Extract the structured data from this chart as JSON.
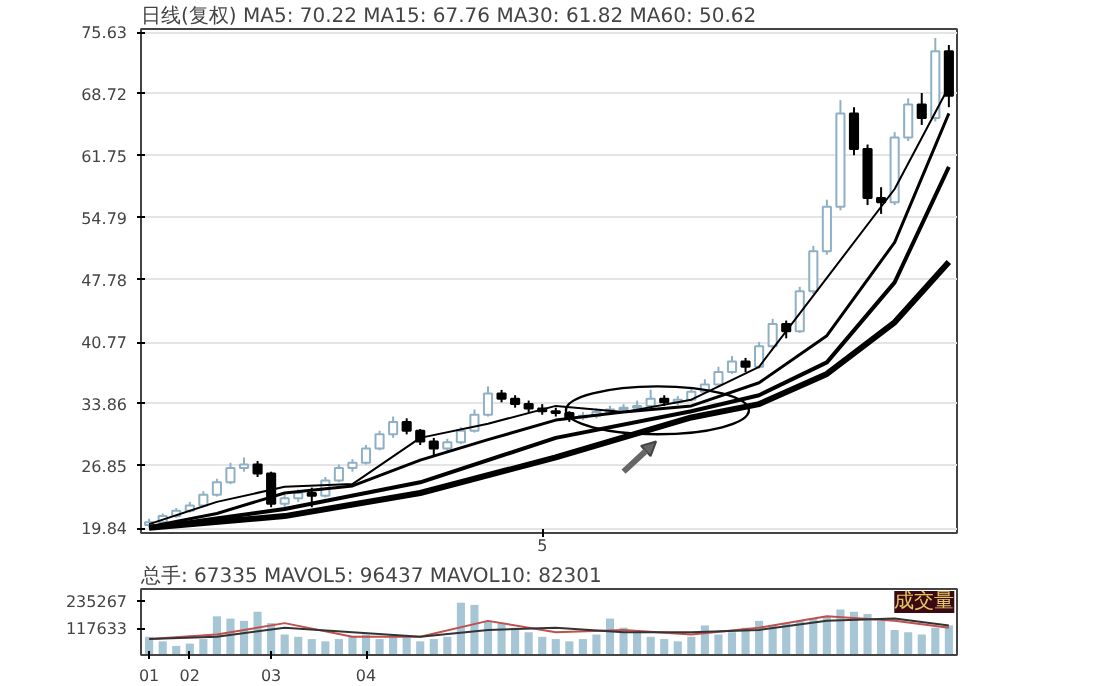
{
  "chart_data": [
    {
      "type": "candlestick",
      "title": "日线(复权)  MA5: 70.22  MA15: 67.76  MA30: 61.82  MA60: 50.62",
      "categories": [
        null,
        null,
        null,
        null,
        null,
        null,
        null,
        null,
        null,
        null,
        null,
        null,
        null,
        null,
        null,
        null,
        null,
        null,
        null,
        null,
        null,
        null,
        null,
        null,
        null,
        null,
        null,
        null,
        null,
        "5",
        null,
        null,
        null,
        null,
        null,
        null,
        null,
        null,
        null,
        null,
        null,
        null,
        null,
        null,
        null,
        null,
        null,
        null,
        null,
        null,
        null,
        null,
        null,
        null,
        null,
        null,
        null,
        null,
        null,
        null
      ],
      "ohlc": [
        [
          20.2,
          20.9,
          19.9,
          20.5
        ],
        [
          20.5,
          21.5,
          20.3,
          21.2
        ],
        [
          21.2,
          22.1,
          21.0,
          21.8
        ],
        [
          21.8,
          22.8,
          21.6,
          22.4
        ],
        [
          22.4,
          24.0,
          22.2,
          23.6
        ],
        [
          23.6,
          25.4,
          23.4,
          25.0
        ],
        [
          25.0,
          27.2,
          24.8,
          26.6
        ],
        [
          26.6,
          27.8,
          26.2,
          27.0
        ],
        [
          27.0,
          27.4,
          25.6,
          26.0
        ],
        [
          26.0,
          26.2,
          22.2,
          22.6
        ],
        [
          22.6,
          23.6,
          21.8,
          23.2
        ],
        [
          23.2,
          24.2,
          22.8,
          23.8
        ],
        [
          23.8,
          24.4,
          22.2,
          23.5
        ],
        [
          23.5,
          25.6,
          23.3,
          25.2
        ],
        [
          25.2,
          27.0,
          25.0,
          26.6
        ],
        [
          26.6,
          27.6,
          26.2,
          27.2
        ],
        [
          27.2,
          29.2,
          27.0,
          28.8
        ],
        [
          28.8,
          30.8,
          28.6,
          30.4
        ],
        [
          30.4,
          32.4,
          30.0,
          31.8
        ],
        [
          31.8,
          32.2,
          30.4,
          30.8
        ],
        [
          30.8,
          31.0,
          29.2,
          29.6
        ],
        [
          29.6,
          30.0,
          28.0,
          28.8
        ],
        [
          28.8,
          29.9,
          28.4,
          29.5
        ],
        [
          29.5,
          31.2,
          29.3,
          30.8
        ],
        [
          30.8,
          33.2,
          30.6,
          32.6
        ],
        [
          32.6,
          35.8,
          32.4,
          35.0
        ],
        [
          35.0,
          35.4,
          34.0,
          34.4
        ],
        [
          34.4,
          34.8,
          33.4,
          33.8
        ],
        [
          33.8,
          34.2,
          32.9,
          33.3
        ],
        [
          33.3,
          33.8,
          32.6,
          33.0
        ],
        [
          33.0,
          33.4,
          32.4,
          32.8
        ],
        [
          32.8,
          33.0,
          31.8,
          32.3
        ],
        [
          32.3,
          32.9,
          32.0,
          32.5
        ],
        [
          32.5,
          33.3,
          32.2,
          32.9
        ],
        [
          32.9,
          33.6,
          32.6,
          33.2
        ],
        [
          33.2,
          33.8,
          32.9,
          33.4
        ],
        [
          33.4,
          34.2,
          33.1,
          33.6
        ],
        [
          33.6,
          35.4,
          33.4,
          34.4
        ],
        [
          34.4,
          34.8,
          33.6,
          34.0
        ],
        [
          34.0,
          34.7,
          33.7,
          34.3
        ],
        [
          34.3,
          35.6,
          34.1,
          35.2
        ],
        [
          35.2,
          36.6,
          35.0,
          36.0
        ],
        [
          36.0,
          38.0,
          35.8,
          37.4
        ],
        [
          37.4,
          39.2,
          37.2,
          38.6
        ],
        [
          38.6,
          39.0,
          37.4,
          38.0
        ],
        [
          38.0,
          40.8,
          37.8,
          40.3
        ],
        [
          40.3,
          43.4,
          40.0,
          42.8
        ],
        [
          42.8,
          43.2,
          41.2,
          42.0
        ],
        [
          42.0,
          47.0,
          41.8,
          46.5
        ],
        [
          46.5,
          51.6,
          46.2,
          51.0
        ],
        [
          51.0,
          56.8,
          50.6,
          56.0
        ],
        [
          56.0,
          68.0,
          55.6,
          66.5
        ],
        [
          66.5,
          67.2,
          61.8,
          62.5
        ],
        [
          62.5,
          63.0,
          56.2,
          57.0
        ],
        [
          57.0,
          58.2,
          55.2,
          56.5
        ],
        [
          56.5,
          64.4,
          56.2,
          63.8
        ],
        [
          63.8,
          68.2,
          63.4,
          67.5
        ],
        [
          67.5,
          68.8,
          65.2,
          66.0
        ],
        [
          66.0,
          75.0,
          65.6,
          73.5
        ],
        [
          73.5,
          74.2,
          67.2,
          68.5
        ]
      ],
      "series": [
        {
          "type": "line",
          "color": "#000000",
          "values": [
            20.3,
            null,
            null,
            null,
            null,
            22.8,
            null,
            null,
            null,
            null,
            24.5,
            null,
            null,
            null,
            null,
            24.8,
            null,
            null,
            null,
            null,
            30.0,
            null,
            null,
            null,
            null,
            31.6,
            null,
            null,
            null,
            null,
            33.6,
            null,
            null,
            null,
            null,
            32.9,
            null,
            null,
            null,
            null,
            34.3,
            null,
            null,
            null,
            null,
            38.0,
            null,
            null,
            null,
            null,
            48.0,
            null,
            null,
            null,
            null,
            58.0,
            null,
            null,
            null,
            69.5
          ]
        },
        {
          "type": "line",
          "color": "#000000",
          "values": [
            20.0,
            null,
            null,
            null,
            null,
            21.5,
            null,
            null,
            null,
            null,
            23.8,
            null,
            null,
            null,
            null,
            24.6,
            null,
            null,
            null,
            null,
            27.5,
            null,
            null,
            null,
            null,
            29.8,
            null,
            null,
            null,
            null,
            32.0,
            null,
            null,
            null,
            null,
            32.9,
            null,
            null,
            null,
            null,
            33.6,
            null,
            null,
            null,
            null,
            36.2,
            null,
            null,
            null,
            null,
            41.5,
            null,
            null,
            null,
            null,
            52.0,
            null,
            null,
            null,
            66.5
          ]
        },
        {
          "type": "line",
          "color": "#000000",
          "values": [
            19.9,
            null,
            null,
            null,
            null,
            null,
            null,
            null,
            null,
            null,
            22.0,
            null,
            null,
            null,
            null,
            null,
            null,
            null,
            null,
            null,
            25.0,
            null,
            null,
            null,
            null,
            null,
            null,
            null,
            null,
            null,
            30.0,
            null,
            null,
            null,
            null,
            null,
            null,
            null,
            null,
            null,
            33.0,
            null,
            null,
            null,
            null,
            34.8,
            null,
            null,
            null,
            null,
            38.5,
            null,
            null,
            null,
            null,
            47.5,
            null,
            null,
            null,
            60.5
          ]
        },
        {
          "type": "line",
          "color": "#000000",
          "values": [
            19.9,
            null,
            null,
            null,
            null,
            null,
            null,
            null,
            null,
            null,
            21.2,
            null,
            null,
            null,
            null,
            null,
            null,
            null,
            null,
            null,
            23.8,
            null,
            null,
            null,
            null,
            null,
            null,
            null,
            null,
            null,
            27.8,
            null,
            null,
            null,
            null,
            null,
            null,
            null,
            null,
            null,
            32.3,
            null,
            null,
            null,
            null,
            33.8,
            null,
            null,
            null,
            null,
            37.2,
            null,
            null,
            null,
            null,
            43.0,
            null,
            null,
            null,
            49.8
          ]
        }
      ],
      "ylim": [
        19.3,
        76.0
      ],
      "yticks": [
        19.84,
        26.85,
        33.86,
        40.77,
        47.78,
        54.79,
        61.75,
        68.72,
        75.63
      ],
      "grid": "y"
    },
    {
      "type": "bar",
      "title": "总手: 67335  MAVOL5: 96437  MAVOL10: 82301",
      "annotations": [
        "成交量"
      ],
      "categories": [
        "01",
        null,
        null,
        "02",
        null,
        null,
        null,
        null,
        null,
        "03",
        null,
        null,
        null,
        null,
        null,
        null,
        "04",
        null,
        null,
        null,
        null,
        null,
        null,
        null,
        null,
        null,
        null,
        null,
        null,
        null,
        null,
        null,
        null,
        null,
        null,
        null,
        null,
        null,
        null,
        null,
        null,
        null,
        null,
        null,
        null,
        null,
        null,
        null,
        null,
        null,
        null,
        null,
        null,
        null,
        null,
        null,
        null,
        null,
        null,
        null
      ],
      "color": "#a6c6d6",
      "values": [
        80000,
        60000,
        40000,
        50000,
        70000,
        170000,
        160000,
        150000,
        190000,
        140000,
        90000,
        80000,
        70000,
        60000,
        70000,
        80000,
        90000,
        70000,
        90000,
        80000,
        60000,
        70000,
        80000,
        230000,
        220000,
        150000,
        140000,
        120000,
        100000,
        80000,
        70000,
        60000,
        70000,
        90000,
        160000,
        120000,
        100000,
        80000,
        70000,
        60000,
        80000,
        130000,
        90000,
        100000,
        120000,
        150000,
        130000,
        140000,
        150000,
        160000,
        170000,
        200000,
        190000,
        180000,
        150000,
        110000,
        100000,
        90000,
        120000,
        130000
      ],
      "series": [
        {
          "type": "line",
          "color": "#c0504d",
          "values": [
            70000,
            null,
            null,
            null,
            null,
            90000,
            null,
            null,
            null,
            null,
            140000,
            null,
            null,
            null,
            null,
            80000,
            null,
            null,
            null,
            null,
            80000,
            null,
            null,
            null,
            null,
            150000,
            null,
            null,
            null,
            null,
            100000,
            null,
            null,
            null,
            null,
            110000,
            null,
            null,
            null,
            null,
            90000,
            null,
            null,
            null,
            null,
            120000,
            null,
            null,
            null,
            null,
            170000,
            null,
            null,
            null,
            null,
            150000,
            null,
            null,
            null,
            120000
          ]
        },
        {
          "type": "line",
          "color": "#333333",
          "values": [
            70000,
            null,
            null,
            null,
            null,
            80000,
            null,
            null,
            null,
            null,
            120000,
            null,
            null,
            null,
            null,
            100000,
            null,
            null,
            null,
            null,
            80000,
            null,
            null,
            null,
            null,
            110000,
            null,
            null,
            null,
            null,
            120000,
            null,
            null,
            null,
            null,
            100000,
            null,
            null,
            null,
            null,
            100000,
            null,
            null,
            null,
            null,
            110000,
            null,
            null,
            null,
            null,
            150000,
            null,
            null,
            null,
            null,
            160000,
            null,
            null,
            null,
            130000
          ]
        }
      ],
      "ylim": [
        0,
        290000
      ],
      "yticks": [
        117633,
        235267
      ]
    }
  ]
}
